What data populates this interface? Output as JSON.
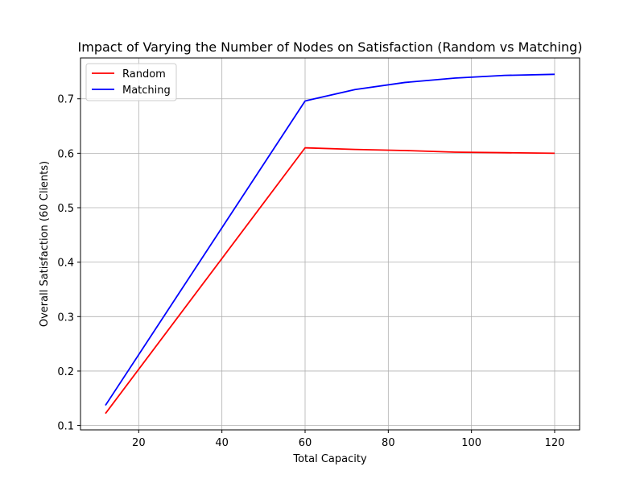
{
  "chart_data": {
    "type": "line",
    "title": "Impact of Varying the Number of Nodes on Satisfaction (Random vs Matching)",
    "xlabel": "Total Capacity",
    "ylabel": "Overall Satisfaction (60 Clients)",
    "xlim": [
      6,
      126
    ],
    "ylim": [
      0.092,
      0.775
    ],
    "xticks": [
      20,
      40,
      60,
      80,
      100,
      120
    ],
    "yticks": [
      0.1,
      0.2,
      0.3,
      0.4,
      0.5,
      0.6,
      0.7
    ],
    "grid": true,
    "legend_position": "upper-left",
    "series": [
      {
        "name": "Random",
        "color": "#ff0000",
        "x": [
          12,
          60,
          72,
          84,
          96,
          108,
          120
        ],
        "y": [
          0.122,
          0.61,
          0.607,
          0.605,
          0.602,
          0.601,
          0.6
        ]
      },
      {
        "name": "Matching",
        "color": "#0000ff",
        "x": [
          12,
          60,
          72,
          84,
          96,
          108,
          120
        ],
        "y": [
          0.137,
          0.696,
          0.717,
          0.73,
          0.738,
          0.743,
          0.745
        ]
      }
    ]
  }
}
